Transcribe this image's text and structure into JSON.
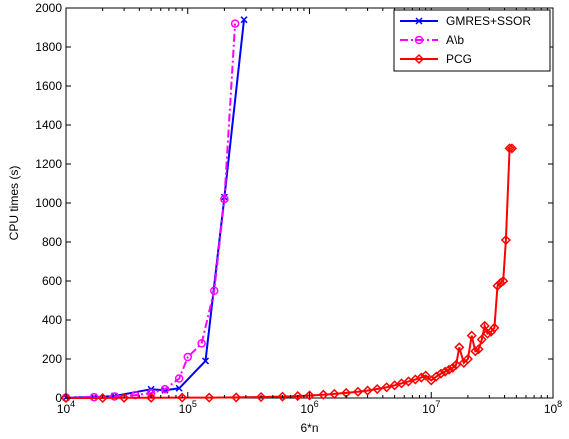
{
  "chart_data": {
    "type": "line",
    "xlabel": "6*n",
    "ylabel": "CPU times (s)",
    "xscale": "log",
    "xlim": [
      10000,
      100000000
    ],
    "ylim": [
      0,
      2000
    ],
    "grid": false,
    "legend_position": "top-right",
    "x_ticks": [
      {
        "value": 10000,
        "base": "10",
        "exp": "4"
      },
      {
        "value": 100000,
        "base": "10",
        "exp": "5"
      },
      {
        "value": 1000000,
        "base": "10",
        "exp": "6"
      },
      {
        "value": 10000000,
        "base": "10",
        "exp": "7"
      },
      {
        "value": 100000000,
        "base": "10",
        "exp": "8"
      }
    ],
    "y_ticks": [
      0,
      200,
      400,
      600,
      800,
      1000,
      1200,
      1400,
      1600,
      1800,
      2000
    ],
    "series": [
      {
        "name": "GMRES+SSOR",
        "color": "#0000ff",
        "line_style": "solid",
        "marker": "x",
        "x": [
          10000,
          17000,
          25000,
          50000,
          65000,
          85000,
          140000,
          200000,
          290000
        ],
        "y": [
          2,
          5,
          10,
          45,
          40,
          50,
          190,
          1030,
          1940
        ]
      },
      {
        "name": "A\\b",
        "color": "#ff00ff",
        "line_style": "dashdot",
        "marker": "circle",
        "x": [
          10000,
          17000,
          25000,
          37000,
          50000,
          65000,
          85000,
          100000,
          130000,
          165000,
          200000,
          245000
        ],
        "y": [
          2,
          4,
          8,
          15,
          25,
          45,
          100,
          210,
          280,
          550,
          1020,
          1920
        ]
      },
      {
        "name": "PCG",
        "color": "#ff0000",
        "line_style": "solid",
        "marker": "diamond",
        "x": [
          10000,
          20000,
          30000,
          50000,
          90000,
          150000,
          250000,
          400000,
          600000,
          800000,
          1000000,
          1300000,
          1600000,
          2000000,
          2500000,
          3000000,
          3600000,
          4300000,
          5000000,
          5700000,
          6500000,
          7400000,
          8300000,
          9000000,
          10000000,
          11000000,
          12000000,
          13000000,
          14000000,
          15000000,
          16000000,
          17000000,
          18500000,
          20000000,
          21500000,
          23000000,
          24500000,
          26000000,
          27500000,
          29000000,
          31000000,
          33000000,
          35000000,
          37000000,
          39000000,
          41000000,
          44000000,
          46000000
        ],
        "y": [
          0,
          0,
          1,
          1,
          2,
          2,
          3,
          5,
          7,
          10,
          13,
          17,
          21,
          26,
          32,
          38,
          46,
          55,
          65,
          75,
          85,
          95,
          105,
          115,
          90,
          110,
          125,
          135,
          145,
          155,
          170,
          260,
          180,
          200,
          320,
          240,
          250,
          300,
          370,
          330,
          340,
          360,
          575,
          590,
          600,
          810,
          1280,
          1280
        ]
      }
    ]
  }
}
